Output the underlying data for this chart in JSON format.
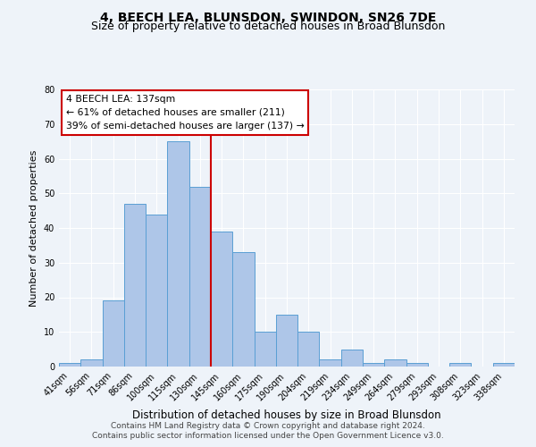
{
  "title": "4, BEECH LEA, BLUNSDON, SWINDON, SN26 7DE",
  "subtitle": "Size of property relative to detached houses in Broad Blunsdon",
  "xlabel": "Distribution of detached houses by size in Broad Blunsdon",
  "ylabel": "Number of detached properties",
  "bar_labels": [
    "41sqm",
    "56sqm",
    "71sqm",
    "86sqm",
    "100sqm",
    "115sqm",
    "130sqm",
    "145sqm",
    "160sqm",
    "175sqm",
    "190sqm",
    "204sqm",
    "219sqm",
    "234sqm",
    "249sqm",
    "264sqm",
    "279sqm",
    "293sqm",
    "308sqm",
    "323sqm",
    "338sqm"
  ],
  "bar_values": [
    1,
    2,
    19,
    47,
    44,
    65,
    52,
    39,
    33,
    10,
    15,
    10,
    2,
    5,
    1,
    2,
    1,
    0,
    1,
    0,
    1
  ],
  "bar_color": "#aec6e8",
  "bar_edge_color": "#5a9fd4",
  "vline_index": 6.5,
  "vline_color": "#cc0000",
  "ylim": [
    0,
    80
  ],
  "yticks": [
    0,
    10,
    20,
    30,
    40,
    50,
    60,
    70,
    80
  ],
  "annotation_title": "4 BEECH LEA: 137sqm",
  "annotation_line1": "← 61% of detached houses are smaller (211)",
  "annotation_line2": "39% of semi-detached houses are larger (137) →",
  "annotation_box_color": "#ffffff",
  "annotation_box_edge_color": "#cc0000",
  "footer_line1": "Contains HM Land Registry data © Crown copyright and database right 2024.",
  "footer_line2": "Contains public sector information licensed under the Open Government Licence v3.0.",
  "bg_color": "#eef3f9",
  "plot_bg_color": "#eef3f9",
  "title_fontsize": 10,
  "subtitle_fontsize": 9,
  "ylabel_fontsize": 8,
  "xlabel_fontsize": 8.5,
  "tick_fontsize": 7,
  "ann_fontsize": 7.8,
  "footer_fontsize": 6.5
}
